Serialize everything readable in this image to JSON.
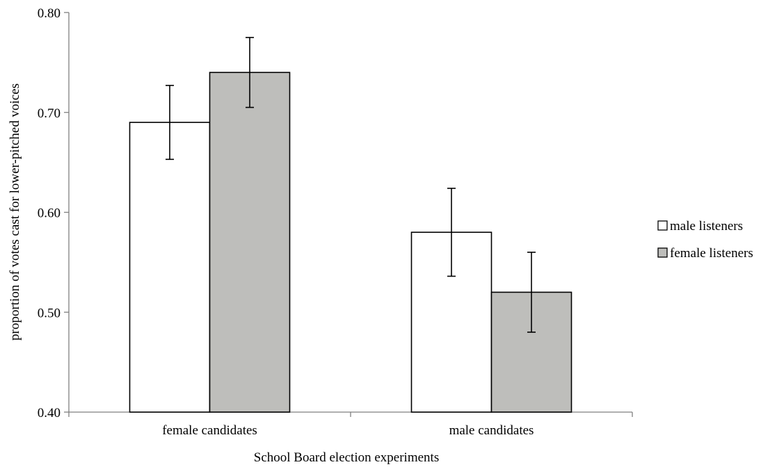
{
  "chart_data": {
    "type": "bar",
    "xlabel": "School Board election experiments",
    "ylabel": "proportion of votes cast  for lower-pitched voices",
    "ylim": [
      0.4,
      0.8
    ],
    "yticks": [
      "0.40",
      "0.50",
      "0.60",
      "0.70",
      "0.80"
    ],
    "categories": [
      "female candidates",
      "male candidates"
    ],
    "series": [
      {
        "name": "male listeners",
        "color": "#ffffff",
        "values": [
          0.69,
          0.58
        ],
        "error_low": [
          0.653,
          0.536
        ],
        "error_high": [
          0.727,
          0.624
        ]
      },
      {
        "name": "female listeners",
        "color": "#bebebb",
        "values": [
          0.74,
          0.52
        ],
        "error_low": [
          0.705,
          0.48
        ],
        "error_high": [
          0.775,
          0.56
        ]
      }
    ],
    "legend_position": "right",
    "grid": false
  }
}
